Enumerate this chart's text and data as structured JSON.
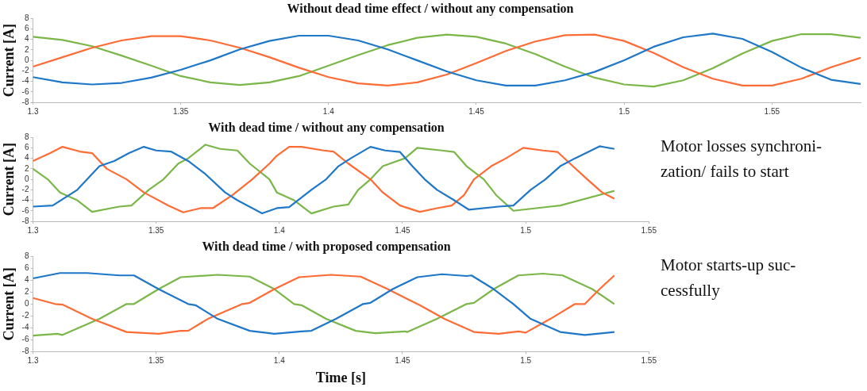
{
  "chart_data": [
    {
      "type": "line",
      "title": "Without dead time effect / without any compensation",
      "ylabel": "Current [A]",
      "x": [
        1.3,
        1.31,
        1.32,
        1.33,
        1.34,
        1.35,
        1.36,
        1.37,
        1.38,
        1.39,
        1.4,
        1.41,
        1.42,
        1.43,
        1.44,
        1.45,
        1.46,
        1.47,
        1.48,
        1.49,
        1.5,
        1.51,
        1.52,
        1.53,
        1.54,
        1.55,
        1.56,
        1.57,
        1.58
      ],
      "series": [
        {
          "color": "#1f77c8",
          "values": [
            -3.2,
            -4.2,
            -4.6,
            -4.3,
            -3.3,
            -1.8,
            0,
            2.1,
            3.7,
            4.7,
            4.7,
            3.8,
            2.1,
            0,
            -2.1,
            -3.8,
            -4.8,
            -4.8,
            -3.8,
            -2.2,
            0,
            2.6,
            4.4,
            5.1,
            4.1,
            1.6,
            -1.4,
            -3.7,
            -4.5
          ]
        },
        {
          "color": "#ff6b35",
          "values": [
            -1.2,
            0.6,
            2.4,
            3.8,
            4.6,
            4.6,
            3.8,
            2.4,
            0.6,
            -1.4,
            -3.2,
            -4.4,
            -4.8,
            -4.2,
            -2.7,
            -0.5,
            1.8,
            3.6,
            4.8,
            4.9,
            3.7,
            1.4,
            -1.3,
            -3.5,
            -4.8,
            -4.8,
            -3.5,
            -1.3,
            0.5
          ]
        },
        {
          "color": "#7ab648",
          "values": [
            4.5,
            3.9,
            2.7,
            0.9,
            -1,
            -3,
            -4.2,
            -4.7,
            -4.2,
            -3,
            -1,
            1,
            2.9,
            4.3,
            4.9,
            4.5,
            3.2,
            1.2,
            -1.2,
            -3.3,
            -4.6,
            -5,
            -3.8,
            -1.5,
            1.3,
            3.7,
            5,
            5,
            4.3
          ]
        }
      ],
      "xlim": [
        1.3,
        1.58
      ],
      "xticks": [
        1.3,
        1.35,
        1.4,
        1.45,
        1.5,
        1.55
      ],
      "ylim": [
        -8,
        8
      ],
      "yticks": [
        -8,
        -6,
        -4,
        -2,
        0,
        2,
        4,
        6,
        8
      ]
    },
    {
      "type": "line",
      "title": "With dead time / without any compensation",
      "ylabel": "Current [A]",
      "series": [
        {
          "color": "#1f77c8",
          "x": [
            1.3,
            1.308,
            1.318,
            1.322,
            1.327,
            1.333,
            1.339,
            1.345,
            1.35,
            1.356,
            1.363,
            1.37,
            1.378,
            1.383,
            1.393,
            1.399,
            1.404,
            1.413,
            1.419,
            1.424,
            1.429,
            1.437,
            1.443,
            1.449,
            1.454,
            1.459,
            1.464,
            1.471,
            1.477,
            1.489,
            1.495,
            1.502,
            1.508,
            1.514,
            1.52,
            1.53,
            1.536
          ],
          "values": [
            -5.2,
            -5,
            -2,
            0,
            2.5,
            3.5,
            5,
            6.2,
            5.5,
            5.3,
            3.5,
            1,
            -2.5,
            -4,
            -6.5,
            -5.5,
            -5.3,
            -2,
            0,
            2.5,
            4,
            6.2,
            5.5,
            5.2,
            2.5,
            0,
            -2,
            -4,
            -5.8,
            -5.2,
            -5,
            -2,
            0,
            2.5,
            4,
            6.3,
            5.8
          ]
        },
        {
          "color": "#ff6b35",
          "x": [
            1.3,
            1.307,
            1.312,
            1.319,
            1.324,
            1.33,
            1.338,
            1.345,
            1.355,
            1.361,
            1.368,
            1.373,
            1.381,
            1.389,
            1.396,
            1.399,
            1.404,
            1.409,
            1.418,
            1.422,
            1.428,
            1.437,
            1.442,
            1.449,
            1.457,
            1.464,
            1.47,
            1.475,
            1.479,
            1.486,
            1.492,
            1.499,
            1.507,
            1.513,
            1.518,
            1.525,
            1.531,
            1.536
          ],
          "values": [
            3.5,
            5,
            6.2,
            5.3,
            5,
            2,
            0,
            -2.5,
            -5,
            -6.3,
            -5.5,
            -5.5,
            -3,
            0,
            3,
            4.5,
            6.2,
            6.2,
            5.5,
            5.3,
            3,
            0,
            -2.5,
            -5,
            -6.2,
            -5.5,
            -5,
            -3,
            0,
            2.5,
            4,
            6,
            5.5,
            5.2,
            3,
            0,
            -2.5,
            -3.7
          ]
        },
        {
          "color": "#7ab648",
          "x": [
            1.3,
            1.306,
            1.311,
            1.318,
            1.324,
            1.335,
            1.34,
            1.347,
            1.353,
            1.359,
            1.363,
            1.37,
            1.376,
            1.383,
            1.388,
            1.396,
            1.399,
            1.406,
            1.413,
            1.422,
            1.428,
            1.432,
            1.437,
            1.442,
            1.451,
            1.456,
            1.466,
            1.471,
            1.476,
            1.483,
            1.488,
            1.495,
            1.51,
            1.514,
            1.536
          ],
          "values": [
            2,
            0,
            -2.5,
            -4,
            -6.2,
            -5.2,
            -5,
            -2,
            0,
            3,
            4,
            6.6,
            5.8,
            5.5,
            3,
            0,
            -2.5,
            -4,
            -6.5,
            -5.2,
            -4.8,
            -2,
            0,
            2.5,
            4,
            6,
            5.5,
            5.2,
            2.5,
            0,
            -3,
            -6,
            -5.2,
            -5,
            -2.2
          ]
        }
      ],
      "xlim": [
        1.3,
        1.55
      ],
      "xticks": [
        1.3,
        1.35,
        1.4,
        1.45,
        1.5,
        1.55
      ],
      "ylim": [
        -8,
        8
      ],
      "yticks": [
        -8,
        -6,
        -4,
        -2,
        0,
        2,
        4,
        6,
        8
      ],
      "annotations": [
        "Motor losses synchroni-zation/ fails to start"
      ]
    },
    {
      "type": "line",
      "title": "With dead time / with proposed compensation",
      "ylabel": "Current [A]",
      "xlabel": "Time [s]",
      "series": [
        {
          "color": "#1f77c8",
          "x": [
            1.3,
            1.311,
            1.322,
            1.335,
            1.341,
            1.351,
            1.363,
            1.366,
            1.375,
            1.388,
            1.398,
            1.409,
            1.413,
            1.423,
            1.434,
            1.437,
            1.446,
            1.456,
            1.466,
            1.476,
            1.478,
            1.487,
            1.495,
            1.502,
            1.514,
            1.524,
            1.536
          ],
          "values": [
            4.3,
            5.2,
            5.2,
            4.8,
            4.8,
            2.5,
            0,
            -0.2,
            -2.5,
            -4.5,
            -5,
            -4.6,
            -4.5,
            -2.5,
            0,
            0.2,
            2.5,
            4.5,
            5,
            4.7,
            4.8,
            2.5,
            0,
            -2.5,
            -4.7,
            -5.2,
            -4.7
          ]
        },
        {
          "color": "#ff6b35",
          "x": [
            1.3,
            1.309,
            1.312,
            1.324,
            1.338,
            1.351,
            1.36,
            1.363,
            1.371,
            1.385,
            1.388,
            1.398,
            1.408,
            1.421,
            1.433,
            1.444,
            1.456,
            1.457,
            1.467,
            1.479,
            1.489,
            1.497,
            1.5,
            1.51,
            1.52,
            1.524,
            1.53,
            1.536
          ],
          "values": [
            1,
            0,
            -0.1,
            -2.5,
            -4.7,
            -5,
            -4.5,
            -4.5,
            -2.5,
            0,
            0.2,
            2.5,
            4.5,
            4.9,
            4.6,
            2.5,
            0,
            -0.2,
            -2.5,
            -4.7,
            -5,
            -4.6,
            -4.8,
            -2.5,
            0,
            0,
            2.5,
            4.8
          ]
        },
        {
          "color": "#7ab648",
          "x": [
            1.3,
            1.31,
            1.312,
            1.327,
            1.338,
            1.341,
            1.351,
            1.36,
            1.375,
            1.388,
            1.398,
            1.406,
            1.409,
            1.419,
            1.431,
            1.439,
            1.451,
            1.452,
            1.464,
            1.476,
            1.479,
            1.487,
            1.497,
            1.507,
            1.515,
            1.527,
            1.536
          ],
          "values": [
            -5.3,
            -5,
            -5.2,
            -2.5,
            0,
            0,
            2.5,
            4.5,
            4.9,
            4.6,
            2.5,
            0,
            -0.2,
            -2.5,
            -4.5,
            -4.9,
            -4.6,
            -4.7,
            -2.5,
            0,
            0.2,
            2.5,
            4.8,
            5.1,
            4.8,
            2.5,
            0
          ]
        }
      ],
      "xlim": [
        1.3,
        1.55
      ],
      "xticks": [
        1.3,
        1.35,
        1.4,
        1.45,
        1.5,
        1.55
      ],
      "ylim": [
        -8,
        8
      ],
      "yticks": [
        -8,
        -6,
        -4,
        -2,
        0,
        2,
        4,
        6,
        8
      ],
      "annotations": [
        "Motor starts-up suc-cessfully"
      ]
    }
  ]
}
